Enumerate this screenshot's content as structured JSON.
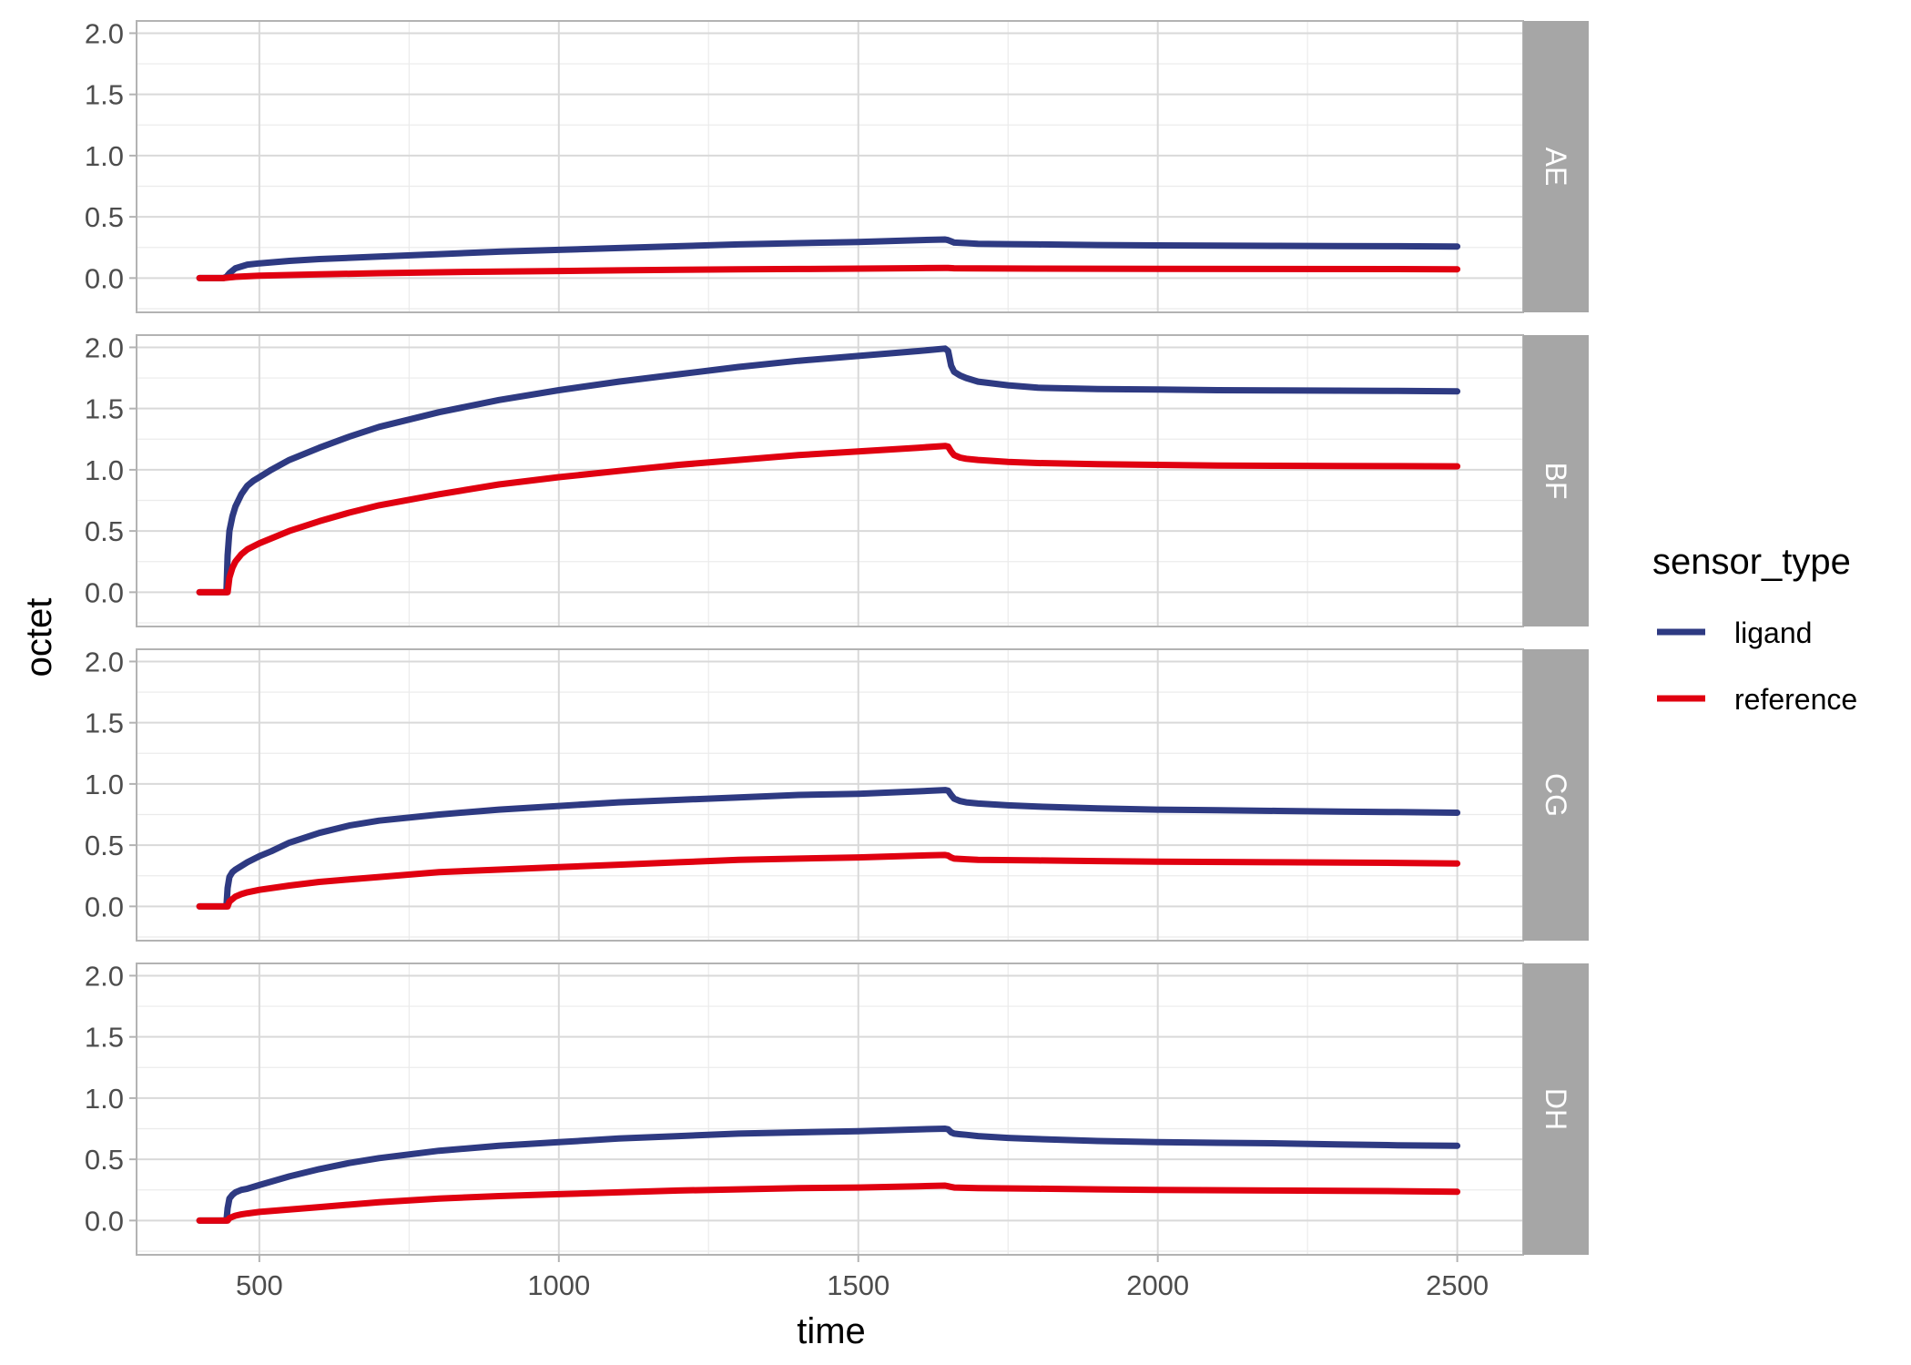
{
  "chart_data": {
    "type": "line",
    "facet_by": "panel",
    "xlabel": "time",
    "ylabel": "octet",
    "xlim": [
      295,
      2610
    ],
    "ylim": [
      -0.28,
      2.1
    ],
    "x_ticks": [
      500,
      1000,
      1500,
      2000,
      2500
    ],
    "y_ticks": [
      0.0,
      0.5,
      1.0,
      1.5,
      2.0
    ],
    "y_tick_labels": [
      "0.0",
      "0.5",
      "1.0",
      "1.5",
      "2.0"
    ],
    "x_tick_labels": [
      "500",
      "1000",
      "1500",
      "2000",
      "2500"
    ],
    "grid": true,
    "legend": {
      "title": "sensor_type",
      "position": "right",
      "entries": [
        {
          "name": "ligand",
          "color": "#2e3a82"
        },
        {
          "name": "reference",
          "color": "#e00010"
        }
      ]
    },
    "panels": [
      {
        "label": "AE",
        "series": [
          {
            "name": "ligand",
            "x": [
              400,
              440,
              445,
              450,
              460,
              480,
              500,
              550,
              600,
              700,
              800,
              900,
              1000,
              1100,
              1200,
              1300,
              1400,
              1500,
              1600,
              1645,
              1650,
              1655,
              1660,
              1680,
              1700,
              1750,
              1800,
              1900,
              2000,
              2100,
              2200,
              2300,
              2400,
              2500
            ],
            "y": [
              0,
              0,
              0.01,
              0.04,
              0.08,
              0.11,
              0.12,
              0.14,
              0.155,
              0.175,
              0.195,
              0.215,
              0.23,
              0.245,
              0.26,
              0.275,
              0.285,
              0.295,
              0.31,
              0.315,
              0.31,
              0.3,
              0.29,
              0.285,
              0.28,
              0.277,
              0.275,
              0.27,
              0.267,
              0.265,
              0.263,
              0.261,
              0.26,
              0.258
            ]
          },
          {
            "name": "reference",
            "x": [
              400,
              440,
              450,
              460,
              500,
              600,
              700,
              800,
              900,
              1000,
              1100,
              1200,
              1300,
              1400,
              1500,
              1600,
              1645,
              1650,
              1660,
              1700,
              1800,
              1900,
              2000,
              2200,
              2400,
              2500
            ],
            "y": [
              0,
              0,
              0.005,
              0.01,
              0.02,
              0.03,
              0.04,
              0.047,
              0.053,
              0.058,
              0.063,
              0.067,
              0.071,
              0.074,
              0.077,
              0.081,
              0.083,
              0.082,
              0.08,
              0.079,
              0.077,
              0.076,
              0.075,
              0.074,
              0.073,
              0.072
            ]
          }
        ]
      },
      {
        "label": "BF",
        "series": [
          {
            "name": "ligand",
            "x": [
              400,
              445,
              447,
              450,
              455,
              460,
              470,
              480,
              490,
              500,
              520,
              550,
              600,
              650,
              700,
              800,
              900,
              1000,
              1100,
              1200,
              1300,
              1400,
              1500,
              1600,
              1645,
              1650,
              1655,
              1660,
              1670,
              1680,
              1700,
              1750,
              1800,
              1900,
              2000,
              2100,
              2200,
              2300,
              2400,
              2500
            ],
            "y": [
              0,
              0,
              0.3,
              0.5,
              0.62,
              0.7,
              0.8,
              0.87,
              0.91,
              0.94,
              1.0,
              1.08,
              1.18,
              1.27,
              1.35,
              1.47,
              1.57,
              1.65,
              1.72,
              1.78,
              1.84,
              1.89,
              1.93,
              1.97,
              1.99,
              1.97,
              1.85,
              1.8,
              1.77,
              1.75,
              1.72,
              1.69,
              1.67,
              1.66,
              1.655,
              1.65,
              1.648,
              1.646,
              1.644,
              1.64
            ]
          },
          {
            "name": "reference",
            "x": [
              400,
              447,
              450,
              455,
              460,
              470,
              480,
              500,
              550,
              600,
              650,
              700,
              800,
              900,
              1000,
              1100,
              1200,
              1300,
              1400,
              1500,
              1600,
              1645,
              1650,
              1655,
              1660,
              1670,
              1680,
              1700,
              1750,
              1800,
              1900,
              2000,
              2100,
              2200,
              2300,
              2400,
              2500
            ],
            "y": [
              0,
              0,
              0.12,
              0.2,
              0.25,
              0.31,
              0.35,
              0.4,
              0.5,
              0.58,
              0.65,
              0.71,
              0.8,
              0.88,
              0.94,
              0.99,
              1.04,
              1.08,
              1.12,
              1.15,
              1.18,
              1.195,
              1.19,
              1.15,
              1.12,
              1.1,
              1.09,
              1.08,
              1.065,
              1.055,
              1.045,
              1.04,
              1.035,
              1.033,
              1.031,
              1.03,
              1.028
            ]
          }
        ]
      },
      {
        "label": "CG",
        "series": [
          {
            "name": "ligand",
            "x": [
              400,
              445,
              447,
              450,
              455,
              460,
              470,
              480,
              500,
              520,
              550,
              600,
              650,
              700,
              800,
              900,
              1000,
              1100,
              1200,
              1300,
              1400,
              1500,
              1600,
              1645,
              1650,
              1655,
              1660,
              1670,
              1680,
              1700,
              1750,
              1800,
              1900,
              2000,
              2100,
              2200,
              2300,
              2400,
              2500
            ],
            "y": [
              0,
              0,
              0.15,
              0.24,
              0.28,
              0.3,
              0.33,
              0.36,
              0.41,
              0.45,
              0.52,
              0.6,
              0.66,
              0.7,
              0.75,
              0.79,
              0.82,
              0.85,
              0.87,
              0.89,
              0.91,
              0.92,
              0.94,
              0.95,
              0.945,
              0.91,
              0.88,
              0.86,
              0.85,
              0.84,
              0.825,
              0.815,
              0.8,
              0.79,
              0.785,
              0.78,
              0.775,
              0.77,
              0.765
            ]
          },
          {
            "name": "reference",
            "x": [
              400,
              447,
              450,
              455,
              460,
              470,
              480,
              500,
              550,
              600,
              650,
              700,
              800,
              900,
              1000,
              1100,
              1200,
              1300,
              1400,
              1500,
              1600,
              1645,
              1650,
              1655,
              1660,
              1680,
              1700,
              1800,
              1900,
              2000,
              2200,
              2400,
              2500
            ],
            "y": [
              0,
              0,
              0.04,
              0.06,
              0.08,
              0.1,
              0.115,
              0.135,
              0.17,
              0.2,
              0.22,
              0.24,
              0.28,
              0.3,
              0.32,
              0.34,
              0.36,
              0.38,
              0.39,
              0.4,
              0.415,
              0.42,
              0.415,
              0.4,
              0.39,
              0.385,
              0.38,
              0.375,
              0.37,
              0.365,
              0.36,
              0.355,
              0.35
            ]
          }
        ]
      },
      {
        "label": "DH",
        "series": [
          {
            "name": "ligand",
            "x": [
              400,
              445,
              447,
              450,
              455,
              460,
              470,
              480,
              500,
              550,
              600,
              650,
              700,
              800,
              900,
              1000,
              1100,
              1200,
              1300,
              1400,
              1500,
              1600,
              1645,
              1650,
              1655,
              1660,
              1670,
              1680,
              1700,
              1750,
              1800,
              1900,
              2000,
              2100,
              2200,
              2300,
              2400,
              2500
            ],
            "y": [
              0,
              0,
              0.1,
              0.18,
              0.21,
              0.23,
              0.25,
              0.26,
              0.29,
              0.36,
              0.42,
              0.47,
              0.51,
              0.57,
              0.61,
              0.64,
              0.67,
              0.69,
              0.71,
              0.72,
              0.73,
              0.745,
              0.75,
              0.745,
              0.72,
              0.71,
              0.705,
              0.7,
              0.69,
              0.675,
              0.665,
              0.65,
              0.64,
              0.635,
              0.63,
              0.622,
              0.615,
              0.61
            ]
          },
          {
            "name": "reference",
            "x": [
              400,
              447,
              450,
              455,
              460,
              470,
              480,
              500,
              550,
              600,
              700,
              800,
              900,
              1000,
              1100,
              1200,
              1300,
              1400,
              1500,
              1600,
              1645,
              1650,
              1655,
              1660,
              1700,
              1800,
              1900,
              2000,
              2200,
              2400,
              2500
            ],
            "y": [
              0,
              0,
              0.02,
              0.03,
              0.04,
              0.05,
              0.058,
              0.07,
              0.09,
              0.11,
              0.15,
              0.18,
              0.2,
              0.215,
              0.23,
              0.245,
              0.255,
              0.265,
              0.27,
              0.28,
              0.285,
              0.28,
              0.275,
              0.27,
              0.265,
              0.26,
              0.255,
              0.25,
              0.245,
              0.24,
              0.235
            ]
          }
        ]
      }
    ]
  }
}
